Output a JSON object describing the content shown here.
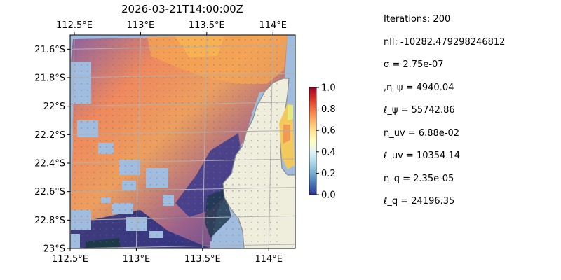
{
  "chart_data": {
    "type": "heatmap",
    "title": "2026-03-21T14:00:00Z",
    "x_ticks_top": [
      "112.5°E",
      "113°E",
      "113.5°E",
      "114°E"
    ],
    "x_ticks_bottom": [
      "112.5°E",
      "113°E",
      "113.5°E",
      "114°E"
    ],
    "x_tick_values": [
      112.5,
      113,
      113.5,
      114
    ],
    "y_ticks": [
      "21.6°S",
      "21.8°S",
      "22°S",
      "22.2°S",
      "22.4°S",
      "22.6°S",
      "22.8°S",
      "23°S"
    ],
    "y_tick_values": [
      -21.6,
      -21.8,
      -22.0,
      -22.2,
      -22.4,
      -22.6,
      -22.8,
      -23.0
    ],
    "xlim": [
      112.5,
      114.2
    ],
    "ylim": [
      -23.0,
      -21.5
    ],
    "grid": true,
    "colorbar": {
      "range": [
        0.0,
        1.0
      ],
      "ticks": [
        "0.0",
        "0.2",
        "0.4",
        "0.6",
        "0.8",
        "1.0"
      ],
      "tick_values": [
        0,
        0.2,
        0.4,
        0.6,
        0.8,
        1.0
      ],
      "colormap": "RdYlBu_r",
      "placement": "right"
    },
    "colors": {
      "land": "#efeedd",
      "coast": "#8a8a8a",
      "masked_ocean": "#a0bde0",
      "grid": "#b0b0b0"
    }
  },
  "stats": {
    "iterations": "Iterations: 200",
    "nll": "nll: -10282.479298246812",
    "sigma": "σ = 2.75e-07",
    "eta_psi": ",η_ψ = 4940.04",
    "ell_psi": "ℓ_ψ = 55742.86",
    "eta_uv": "η_uv = 6.88e-02",
    "ell_uv": "ℓ_uv = 10354.14",
    "eta_q": "η_q = 2.35e-05",
    "ell_q": "ℓ_q = 24196.35"
  }
}
